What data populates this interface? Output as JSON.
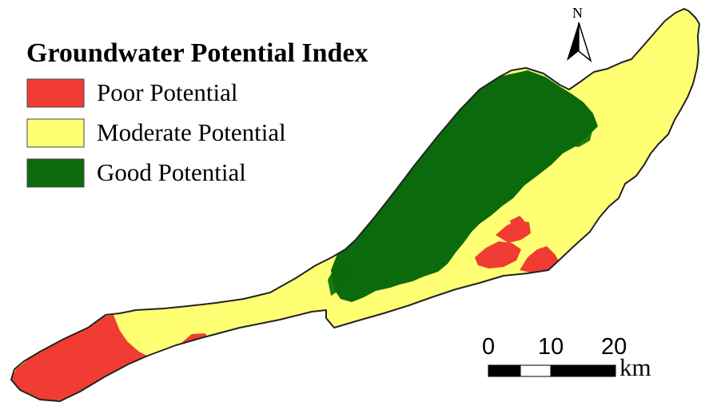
{
  "legend": {
    "title": "Groundwater Potential Index",
    "items": [
      {
        "label": "Poor Potential",
        "color": "#f03c32"
      },
      {
        "label": "Moderate Potential",
        "color": "#ffff73"
      },
      {
        "label": "Good Potential",
        "color": "#0b6a0b"
      }
    ]
  },
  "north_arrow": {
    "label": "N"
  },
  "scale_bar": {
    "ticks": [
      "0",
      "10",
      "20"
    ],
    "unit": "km"
  },
  "map": {
    "outline_color": "#222222",
    "background_color": "#ffffff"
  }
}
